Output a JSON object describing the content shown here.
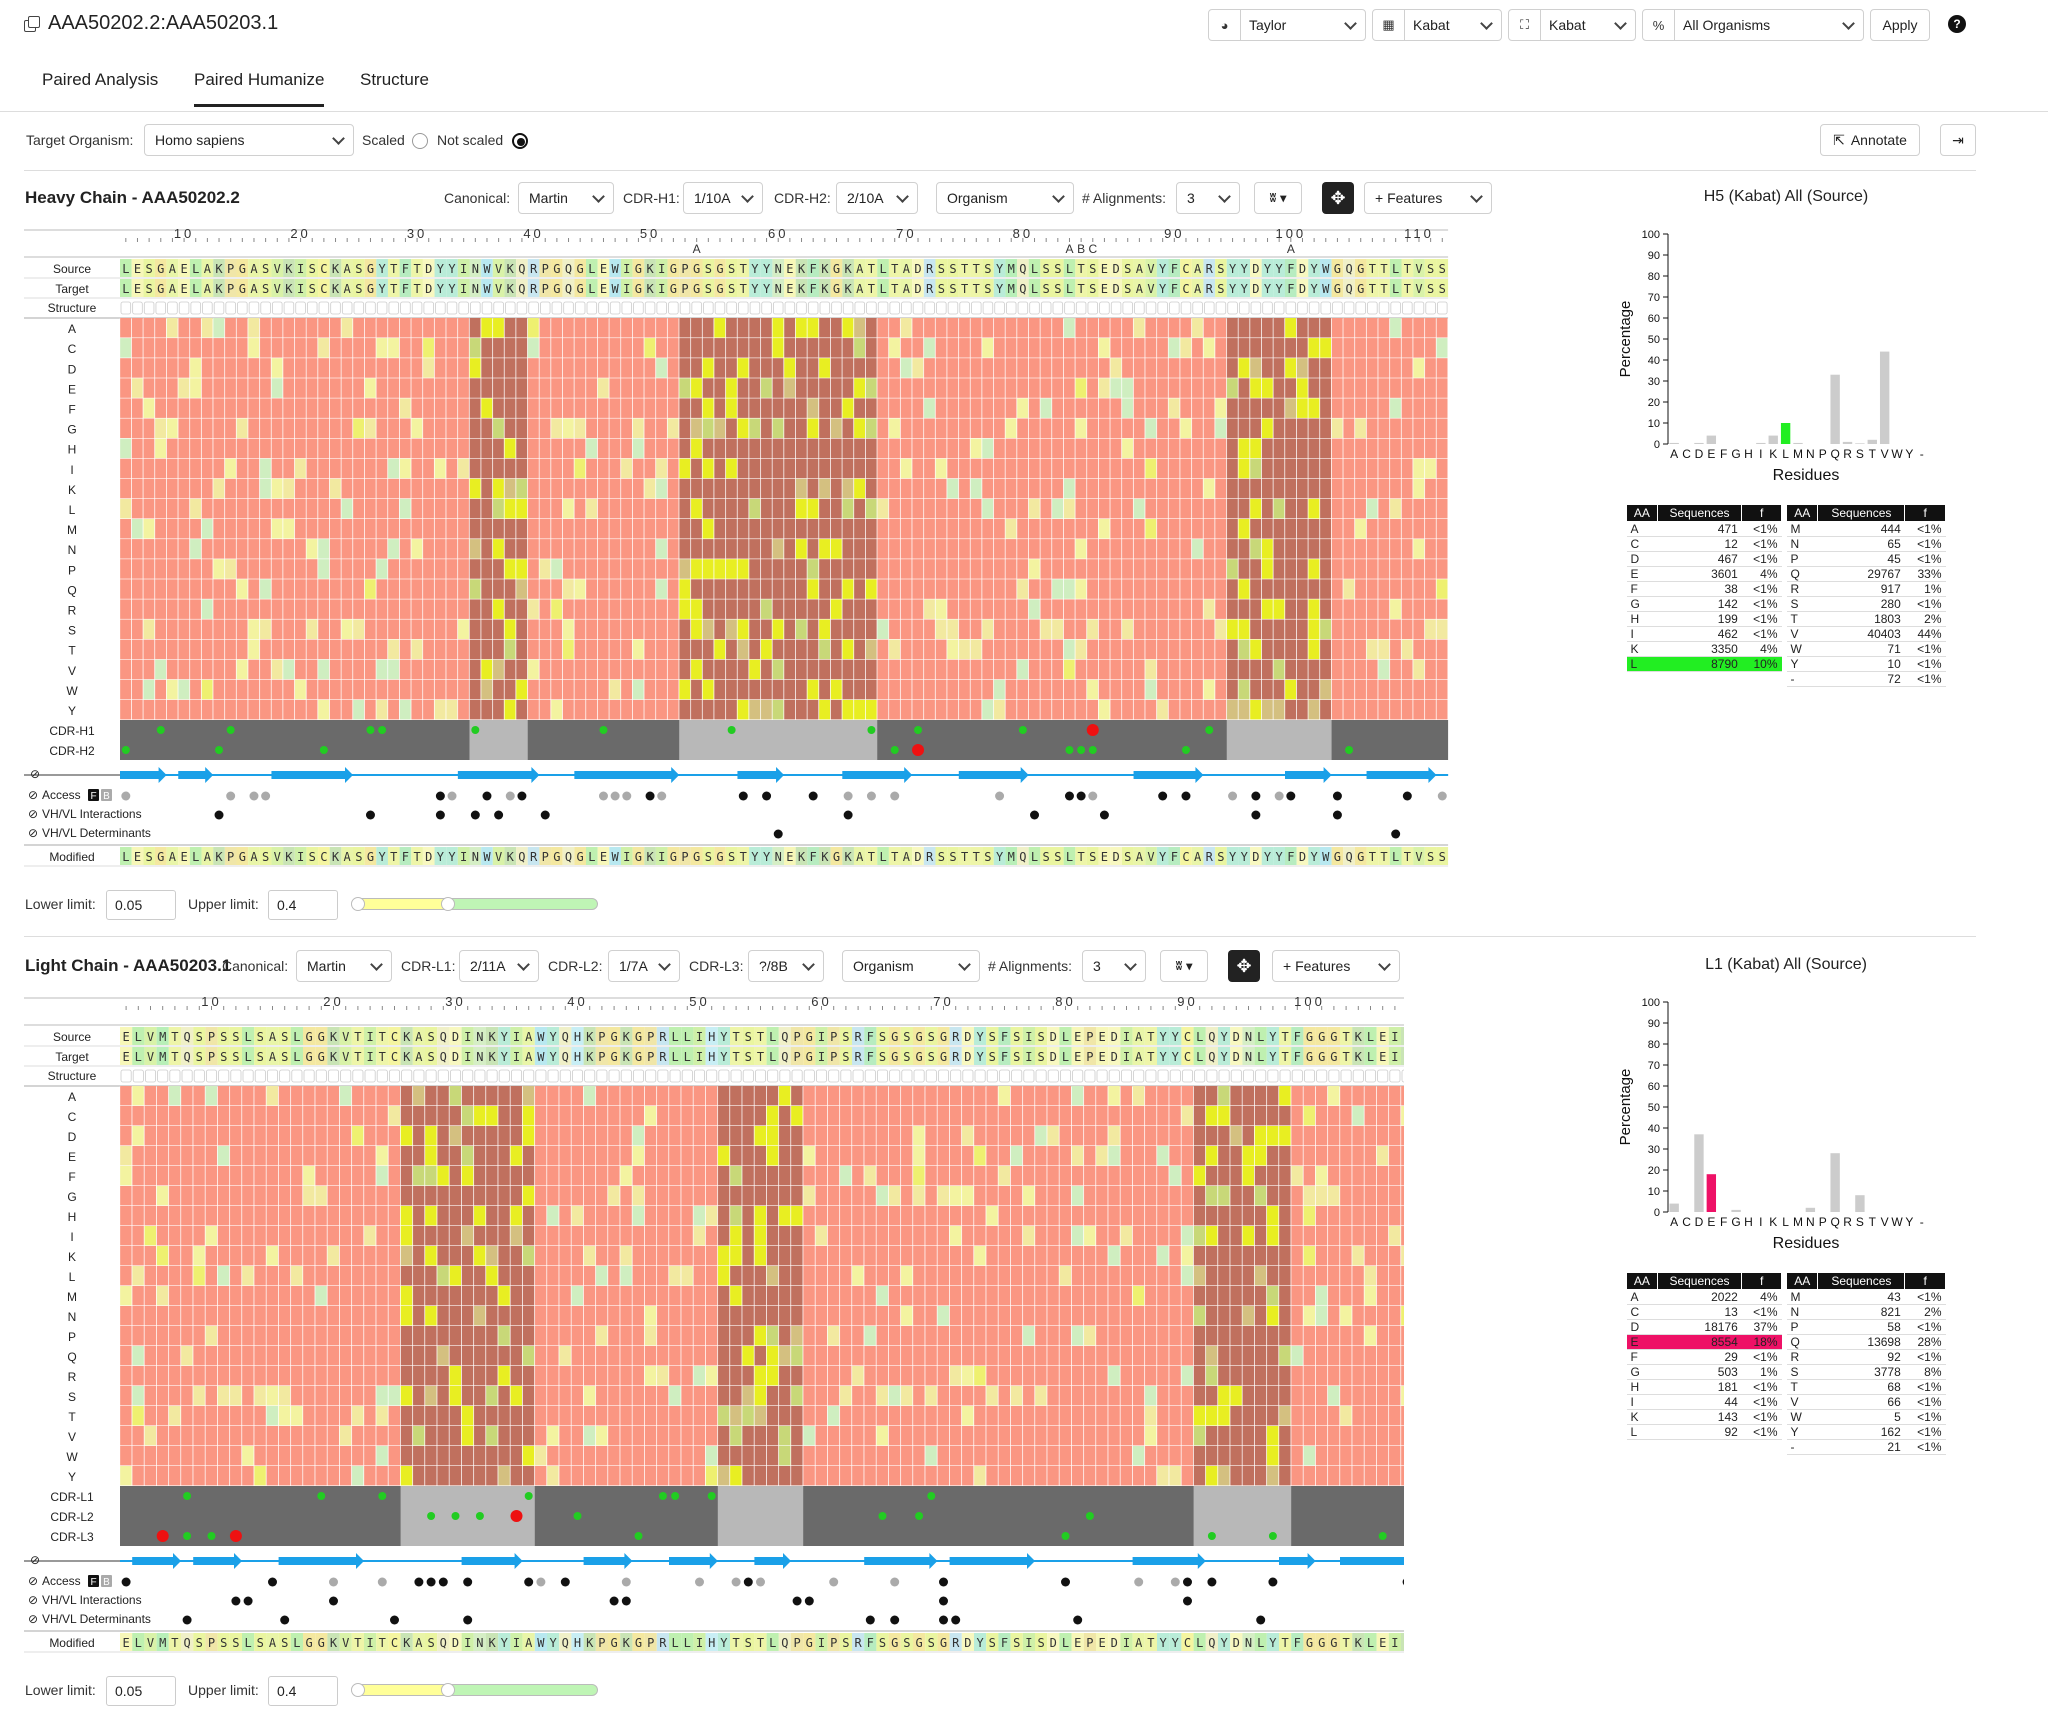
{
  "header": {
    "title": "AAA50202.2:AAA50203.1",
    "color_scheme": "Taylor",
    "numbering": "Kabat",
    "cdr_def": "Kabat",
    "organism": "All Organisms",
    "apply_label": "Apply",
    "help_label": "?"
  },
  "tabs": [
    {
      "label": "Paired Analysis"
    },
    {
      "label": "Paired Humanize"
    },
    {
      "label": "Structure"
    }
  ],
  "controls": {
    "target_organism_label": "Target Organism:",
    "target_organism": "Homo sapiens",
    "scaled_label": "Scaled",
    "not_scaled_label": "Not scaled",
    "annotate_label": "Annotate"
  },
  "heavy": {
    "title": "Heavy Chain - AAA50202.2",
    "canonical_label": "Canonical:",
    "canonical": "Martin",
    "cdr1_label": "CDR-H1:",
    "cdr1": "1/10A",
    "cdr2_label": "CDR-H2:",
    "cdr2": "2/10A",
    "organism": "Organism",
    "alignments_label": "# Alignments:",
    "alignments": "3",
    "features_label": "+ Features",
    "ticks": [
      "10",
      "20",
      "30",
      "40",
      "50",
      "60",
      "70",
      "80",
      "90",
      "100",
      "110"
    ],
    "insert_labels": [
      "A",
      "A",
      "B",
      "C",
      "A"
    ],
    "source": "LESGAELAKPGASVKISCKASGYTFTDYYINWVKQRPGQGLEWIGKIGPGSGSTYYNEKFKGKATLTADRSSTTSYMQLSSLTSEDSAVYFCARSYYDYYFDYWGQGTTLTVSS",
    "target": "LESGAELAKPGASVKISCKASGYTFTDYYINWVKQRPGQGLEWIGKIGPGSGSTYYNEKFKGKATLTADRSSTTSYMQLSSLTSEDSAVYFCARSYYDYYFDYWGQGTTLTVSS",
    "modified": "LESGAELAKPGASVKISCKASGYTFTDYYINWVKQRPGQGLEWIGKIGPGSGSTYYNEKFKGKATLTADRSSTTSYMQLSSLTSEDSAVYFCARSYYDYYFDYWGQGTTLTVSS",
    "row_labels": [
      "Source",
      "Target",
      "Structure",
      "A",
      "C",
      "D",
      "E",
      "F",
      "G",
      "H",
      "I",
      "K",
      "L",
      "M",
      "N",
      "P",
      "Q",
      "R",
      "S",
      "T",
      "V",
      "W",
      "Y",
      "CDR-H1",
      "CDR-H2",
      "",
      "Access",
      "VH/VL Interactions",
      "VH/VL Determinants",
      "Modified"
    ],
    "lower_label": "Lower limit:",
    "lower": "0.05",
    "upper_label": "Upper limit:",
    "upper": "0.4"
  },
  "light": {
    "title": "Light Chain - AAA50203.1",
    "canonical_label": "Canonical:",
    "canonical": "Martin",
    "cdr1_label": "CDR-L1:",
    "cdr1": "2/11A",
    "cdr2_label": "CDR-L2:",
    "cdr2": "1/7A",
    "cdr3_label": "CDR-L3:",
    "cdr3": "?/8B",
    "organism": "Organism",
    "alignments_label": "# Alignments:",
    "alignments": "3",
    "features_label": "+ Features",
    "ticks": [
      "10",
      "20",
      "30",
      "40",
      "50",
      "60",
      "70",
      "80",
      "90",
      "100"
    ],
    "source": "ELVMTQSPSSLSASLGGKVTITCKASQDINKYIAWYQHKPGKGPRLLIHYTSTLQPGIPSRFSGSGSGRDYSFSISDLEPEDIATYYCLQYDNLYTFGGGTKLEIK",
    "target": "ELVMTQSPSSLSASLGGKVTITCKASQDINKYIAWYQHKPGKGPRLLIHYTSTLQPGIPSRFSGSGSGRDYSFSISDLEPEDIATYYCLQYDNLYTFGGGTKLEIK",
    "modified": "ELVMTQSPSSLSASLGGKVTITCKASQDINKYIAWYQHKPGKGPRLLIHYTSTLQPGIPSRFSGSGSGRDYSFSISDLEPEDIATYYCLQYDNLYTFGGGTKLEIK",
    "row_labels": [
      "Source",
      "Target",
      "Structure",
      "A",
      "C",
      "D",
      "E",
      "F",
      "G",
      "H",
      "I",
      "K",
      "L",
      "M",
      "N",
      "P",
      "Q",
      "R",
      "S",
      "T",
      "V",
      "W",
      "Y",
      "CDR-L1",
      "CDR-L2",
      "CDR-L3",
      "",
      "Access",
      "VH/VL Interactions",
      "VH/VL Determinants",
      "Modified"
    ],
    "lower_label": "Lower limit:",
    "lower": "0.05",
    "upper_label": "Upper limit:",
    "upper": "0.4"
  },
  "access_badges": [
    "F",
    "B"
  ],
  "side_heavy": {
    "title": "H5 (Kabat) All (Source)",
    "table_headers": [
      "AA",
      "Sequences",
      "f"
    ],
    "rows_left": [
      [
        "A",
        "471",
        "<1%"
      ],
      [
        "C",
        "12",
        "<1%"
      ],
      [
        "D",
        "467",
        "<1%"
      ],
      [
        "E",
        "3601",
        "4%"
      ],
      [
        "F",
        "38",
        "<1%"
      ],
      [
        "G",
        "142",
        "<1%"
      ],
      [
        "H",
        "199",
        "<1%"
      ],
      [
        "I",
        "462",
        "<1%"
      ],
      [
        "K",
        "3350",
        "4%"
      ],
      [
        "L",
        "8790",
        "10%"
      ]
    ],
    "rows_right": [
      [
        "M",
        "444",
        "<1%"
      ],
      [
        "N",
        "65",
        "<1%"
      ],
      [
        "P",
        "45",
        "<1%"
      ],
      [
        "Q",
        "29767",
        "33%"
      ],
      [
        "R",
        "917",
        "1%"
      ],
      [
        "S",
        "280",
        "<1%"
      ],
      [
        "T",
        "1803",
        "2%"
      ],
      [
        "V",
        "40403",
        "44%"
      ],
      [
        "W",
        "71",
        "<1%"
      ],
      [
        "Y",
        "10",
        "<1%"
      ],
      [
        "-",
        "72",
        "<1%"
      ]
    ],
    "highlight": "L",
    "highlight_color": "#22ee22"
  },
  "side_light": {
    "title": "L1 (Kabat) All (Source)",
    "table_headers": [
      "AA",
      "Sequences",
      "f"
    ],
    "rows_left": [
      [
        "A",
        "2022",
        "4%"
      ],
      [
        "C",
        "13",
        "<1%"
      ],
      [
        "D",
        "18176",
        "37%"
      ],
      [
        "E",
        "8554",
        "18%"
      ],
      [
        "F",
        "29",
        "<1%"
      ],
      [
        "G",
        "503",
        "1%"
      ],
      [
        "H",
        "181",
        "<1%"
      ],
      [
        "I",
        "44",
        "<1%"
      ],
      [
        "K",
        "143",
        "<1%"
      ],
      [
        "L",
        "92",
        "<1%"
      ]
    ],
    "rows_right": [
      [
        "M",
        "43",
        "<1%"
      ],
      [
        "N",
        "821",
        "2%"
      ],
      [
        "P",
        "58",
        "<1%"
      ],
      [
        "Q",
        "13698",
        "28%"
      ],
      [
        "R",
        "92",
        "<1%"
      ],
      [
        "S",
        "3778",
        "8%"
      ],
      [
        "T",
        "68",
        "<1%"
      ],
      [
        "V",
        "66",
        "<1%"
      ],
      [
        "W",
        "5",
        "<1%"
      ],
      [
        "Y",
        "162",
        "<1%"
      ],
      [
        "-",
        "21",
        "<1%"
      ]
    ],
    "highlight": "E",
    "highlight_color": "#ee1166"
  },
  "chart_data": [
    {
      "type": "bar",
      "title": "H5 (Kabat) All (Source)",
      "xlabel": "Residues",
      "ylabel": "Percentage",
      "ylim": [
        0,
        100
      ],
      "yticks": [
        "0",
        "10",
        "20",
        "30",
        "40",
        "50",
        "60",
        "70",
        "80",
        "90",
        "100"
      ],
      "categories": [
        "A",
        "C",
        "D",
        "E",
        "F",
        "G",
        "H",
        "I",
        "K",
        "L",
        "M",
        "N",
        "P",
        "Q",
        "R",
        "S",
        "T",
        "V",
        "W",
        "Y",
        "-"
      ],
      "values": [
        0.5,
        0,
        0.5,
        4,
        0,
        0,
        0,
        0.5,
        4,
        10,
        0.5,
        0,
        0,
        33,
        1,
        0.3,
        2,
        44,
        0,
        0,
        0
      ],
      "highlight": "L",
      "highlight_color": "#22ee22",
      "bar_color": "#cccccc"
    },
    {
      "type": "bar",
      "title": "L1 (Kabat) All (Source)",
      "xlabel": "Residues",
      "ylabel": "Percentage",
      "ylim": [
        0,
        100
      ],
      "yticks": [
        "0",
        "10",
        "20",
        "30",
        "40",
        "50",
        "60",
        "70",
        "80",
        "90",
        "100"
      ],
      "categories": [
        "A",
        "C",
        "D",
        "E",
        "F",
        "G",
        "H",
        "I",
        "K",
        "L",
        "M",
        "N",
        "P",
        "Q",
        "R",
        "S",
        "T",
        "V",
        "W",
        "Y",
        "-"
      ],
      "values": [
        4,
        0,
        37,
        18,
        0,
        1,
        0,
        0,
        0,
        0,
        0,
        2,
        0,
        28,
        0,
        8,
        0,
        0,
        0,
        0,
        0
      ],
      "highlight": "E",
      "highlight_color": "#ee1166",
      "bar_color": "#cccccc"
    }
  ]
}
